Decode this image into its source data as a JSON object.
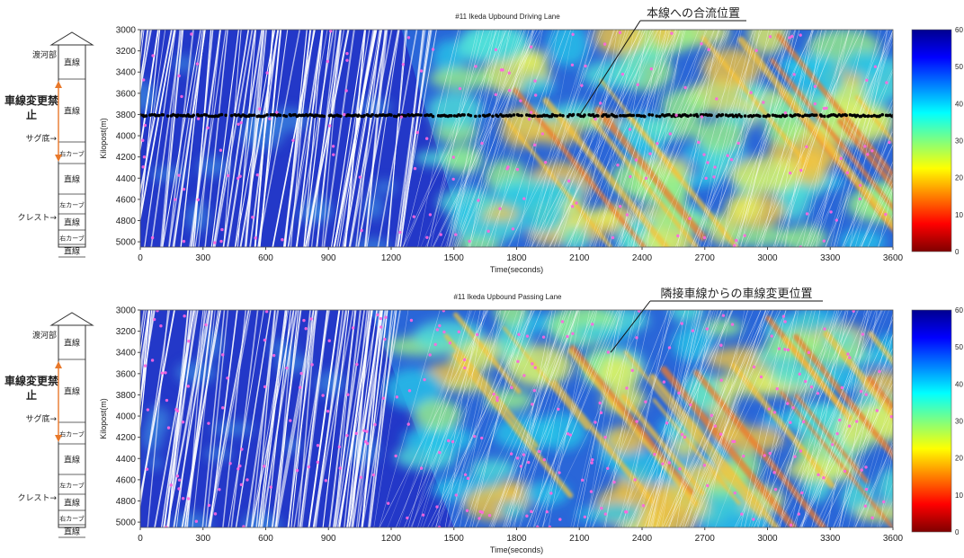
{
  "colorbar": {
    "ticks": [
      60,
      50,
      40,
      30,
      20,
      10,
      0
    ],
    "colors": [
      "#7f0000",
      "#ff0000",
      "#ff7f00",
      "#ffff00",
      "#7fff7f",
      "#00ffff",
      "#007fff",
      "#0000ff",
      "#00008f"
    ]
  },
  "marker_colors": {
    "pink": "#ff66e0",
    "black": "#000000"
  },
  "chart_data": [
    {
      "type": "heatmap",
      "title": "#11 Ikeda Upbound Driving Lane",
      "xlabel": "Time(seconds)",
      "ylabel": "Kilopost(m)",
      "xlim": [
        0,
        3600
      ],
      "ylim": [
        5050,
        3000
      ],
      "xticks": [
        0,
        300,
        600,
        900,
        1200,
        1500,
        1800,
        2100,
        2400,
        2700,
        3000,
        3300,
        3600
      ],
      "yticks": [
        3000,
        3200,
        3400,
        3600,
        3800,
        4000,
        4200,
        4400,
        4600,
        4800,
        5000
      ],
      "color_scale": [
        0,
        60
      ],
      "free_flow_until_s": 1250,
      "congestion_onset": {
        "start_s": 1250,
        "end_s": 1560
      },
      "merge_line_kp": 3810,
      "annotation": {
        "text": "本線への合流位置",
        "target_time_s": 2100,
        "target_kp": 3810
      },
      "road_diagram": {
        "sections": [
          "直線",
          "直線",
          "右カーブ",
          "直線",
          "左カーブ",
          "直線",
          "右カーブ",
          "直線"
        ],
        "labels": {
          "bridge": "渡河部",
          "no_lane_change": "車線変更禁止",
          "sag": "サグ底→",
          "crest": "クレスト→"
        }
      }
    },
    {
      "type": "heatmap",
      "title": "#11 Ikeda Upbound Passing Lane",
      "xlabel": "Time(seconds)",
      "ylabel": "Kilopost(m)",
      "xlim": [
        0,
        3600
      ],
      "ylim": [
        5050,
        3000
      ],
      "xticks": [
        0,
        300,
        600,
        900,
        1200,
        1500,
        1800,
        2100,
        2400,
        2700,
        3000,
        3300,
        3600
      ],
      "yticks": [
        3000,
        3200,
        3400,
        3600,
        3800,
        4000,
        4200,
        4400,
        4600,
        4800,
        5000
      ],
      "color_scale": [
        0,
        60
      ],
      "free_flow_until_s": 1100,
      "congestion_onset": {
        "start_s": 1100,
        "end_s": 1500
      },
      "annotation": {
        "text": "隣接車線からの車線変更位置",
        "target_time_s": 2250,
        "target_kp": 3400
      },
      "road_diagram": {
        "sections": [
          "直線",
          "直線",
          "右カーブ",
          "直線",
          "左カーブ",
          "直線",
          "右カーブ",
          "直線"
        ],
        "labels": {
          "bridge": "渡河部",
          "no_lane_change": "車線変更禁止",
          "sag": "サグ底→",
          "crest": "クレスト→"
        }
      }
    }
  ]
}
